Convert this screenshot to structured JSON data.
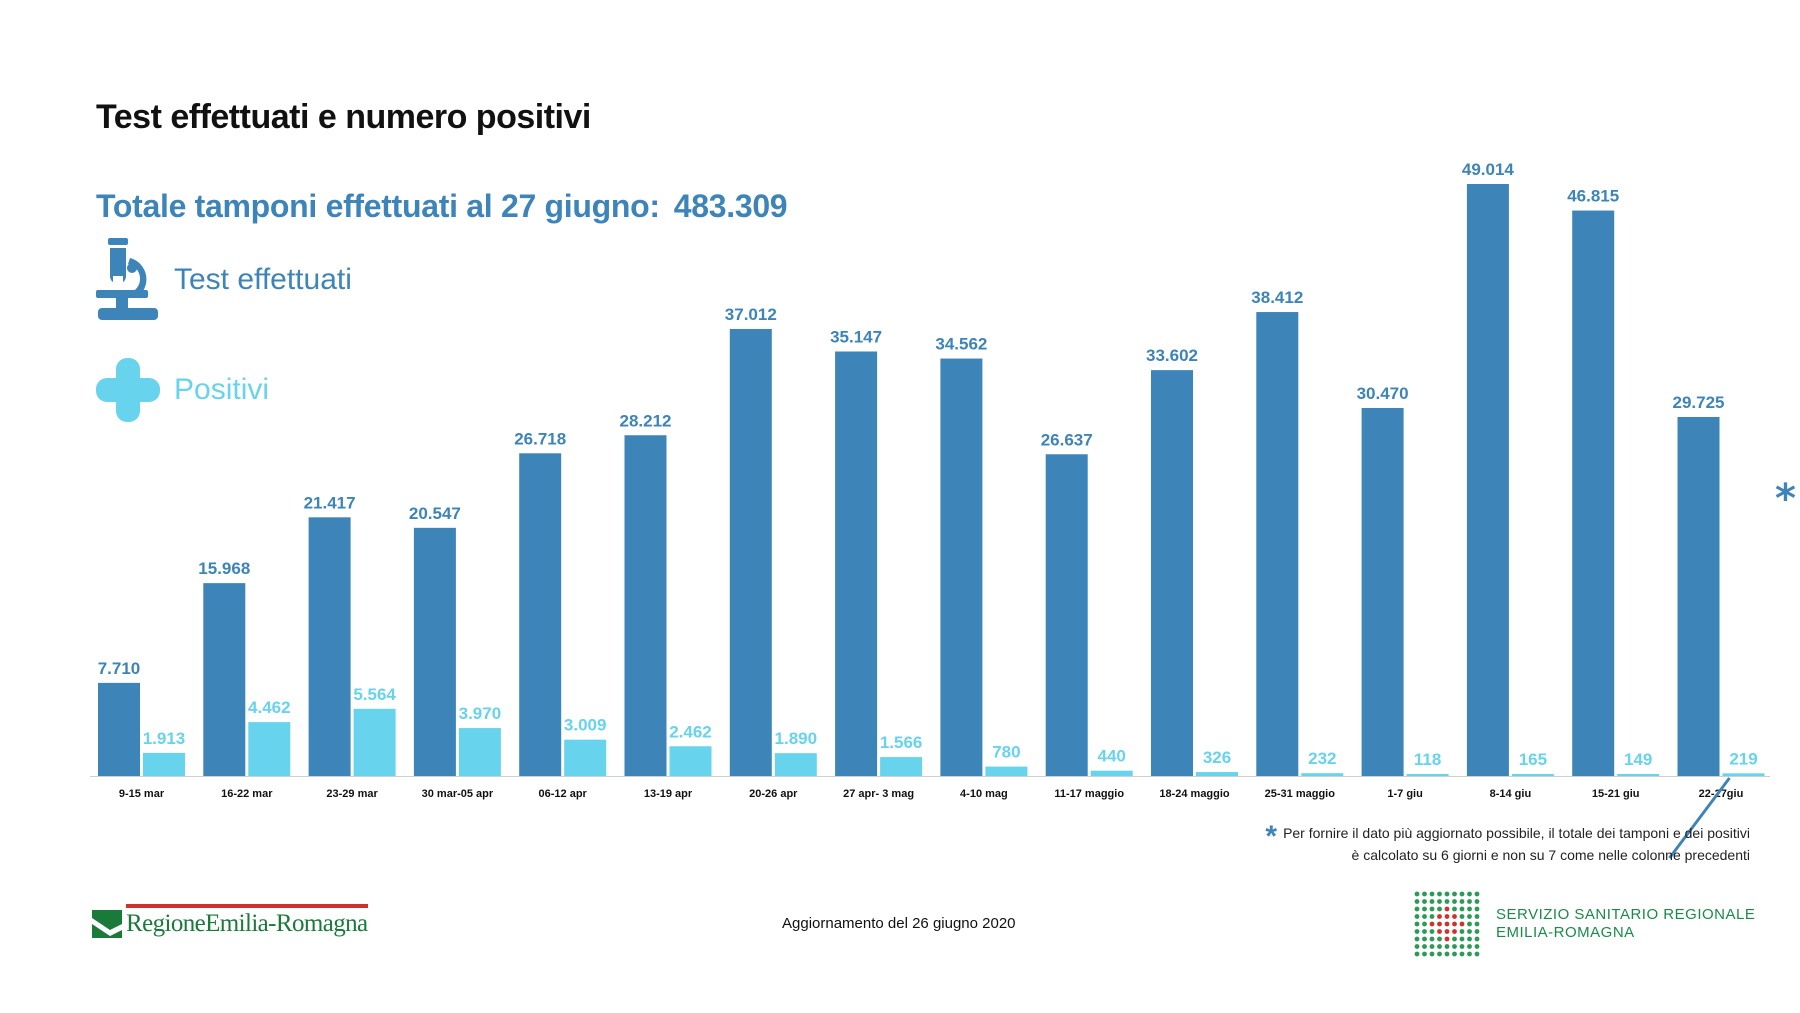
{
  "header": {
    "title": "Test effettuati e numero positivi",
    "subtitle": "Totale tamponi effettuati al 27 giugno:",
    "total": "483.309"
  },
  "legend": {
    "tests_label": "Test effettuati",
    "positives_label": "Positivi",
    "tests_icon": "microscope-icon",
    "positives_icon": "plus-cross-icon"
  },
  "chart_data": {
    "type": "bar",
    "title": "Test effettuati e numero positivi",
    "categories": [
      "9-15 mar",
      "16-22 mar",
      "23-29 mar",
      "30 mar-05 apr",
      "06-12 apr",
      "13-19 apr",
      "20-26 apr",
      "27 apr- 3 mag",
      "4-10 mag",
      "11-17 maggio",
      "18-24 maggio",
      "25-31 maggio",
      "1-7 giu",
      "8-14 giu",
      "15-21 giu",
      "22-27giu"
    ],
    "series": [
      {
        "name": "Test effettuati",
        "color": "#3d84b8",
        "values": [
          7710,
          15968,
          21417,
          20547,
          26718,
          28212,
          37012,
          35147,
          34562,
          26637,
          33602,
          38412,
          30470,
          49014,
          46815,
          29725
        ],
        "labels": [
          "7.710",
          "15.968",
          "21.417",
          "20.547",
          "26.718",
          "28.212",
          "37.012",
          "35.147",
          "34.562",
          "26.637",
          "33.602",
          "38.412",
          "30.470",
          "49.014",
          "46.815",
          "29.725"
        ]
      },
      {
        "name": "Positivi",
        "color": "#67d3ec",
        "values": [
          1913,
          4462,
          5564,
          3970,
          3009,
          2462,
          1890,
          1566,
          780,
          440,
          326,
          232,
          118,
          165,
          149,
          219
        ],
        "labels": [
          "1.913",
          "4.462",
          "5.564",
          "3.970",
          "3.009",
          "2.462",
          "1.890",
          "1.566",
          "780",
          "440",
          "326",
          "232",
          "118",
          "165",
          "149",
          "219"
        ]
      }
    ],
    "ylim": [
      0,
      49014
    ],
    "xlabel": "",
    "ylabel": "",
    "annotation": "*"
  },
  "footnote": {
    "line1": "Per fornire il dato più aggiornato possibile, il totale dei tamponi e dei positivi",
    "line2": "è calcolato su 6 giorni e non su 7 come nelle colonne precedenti"
  },
  "footer": {
    "update": "Aggiornamento del 26 giugno 2020",
    "region_logo": "RegioneEmilia-Romagna",
    "ssr_line1": "SERVIZIO SANITARIO REGIONALE",
    "ssr_line2": "EMILIA-ROMAGNA"
  }
}
